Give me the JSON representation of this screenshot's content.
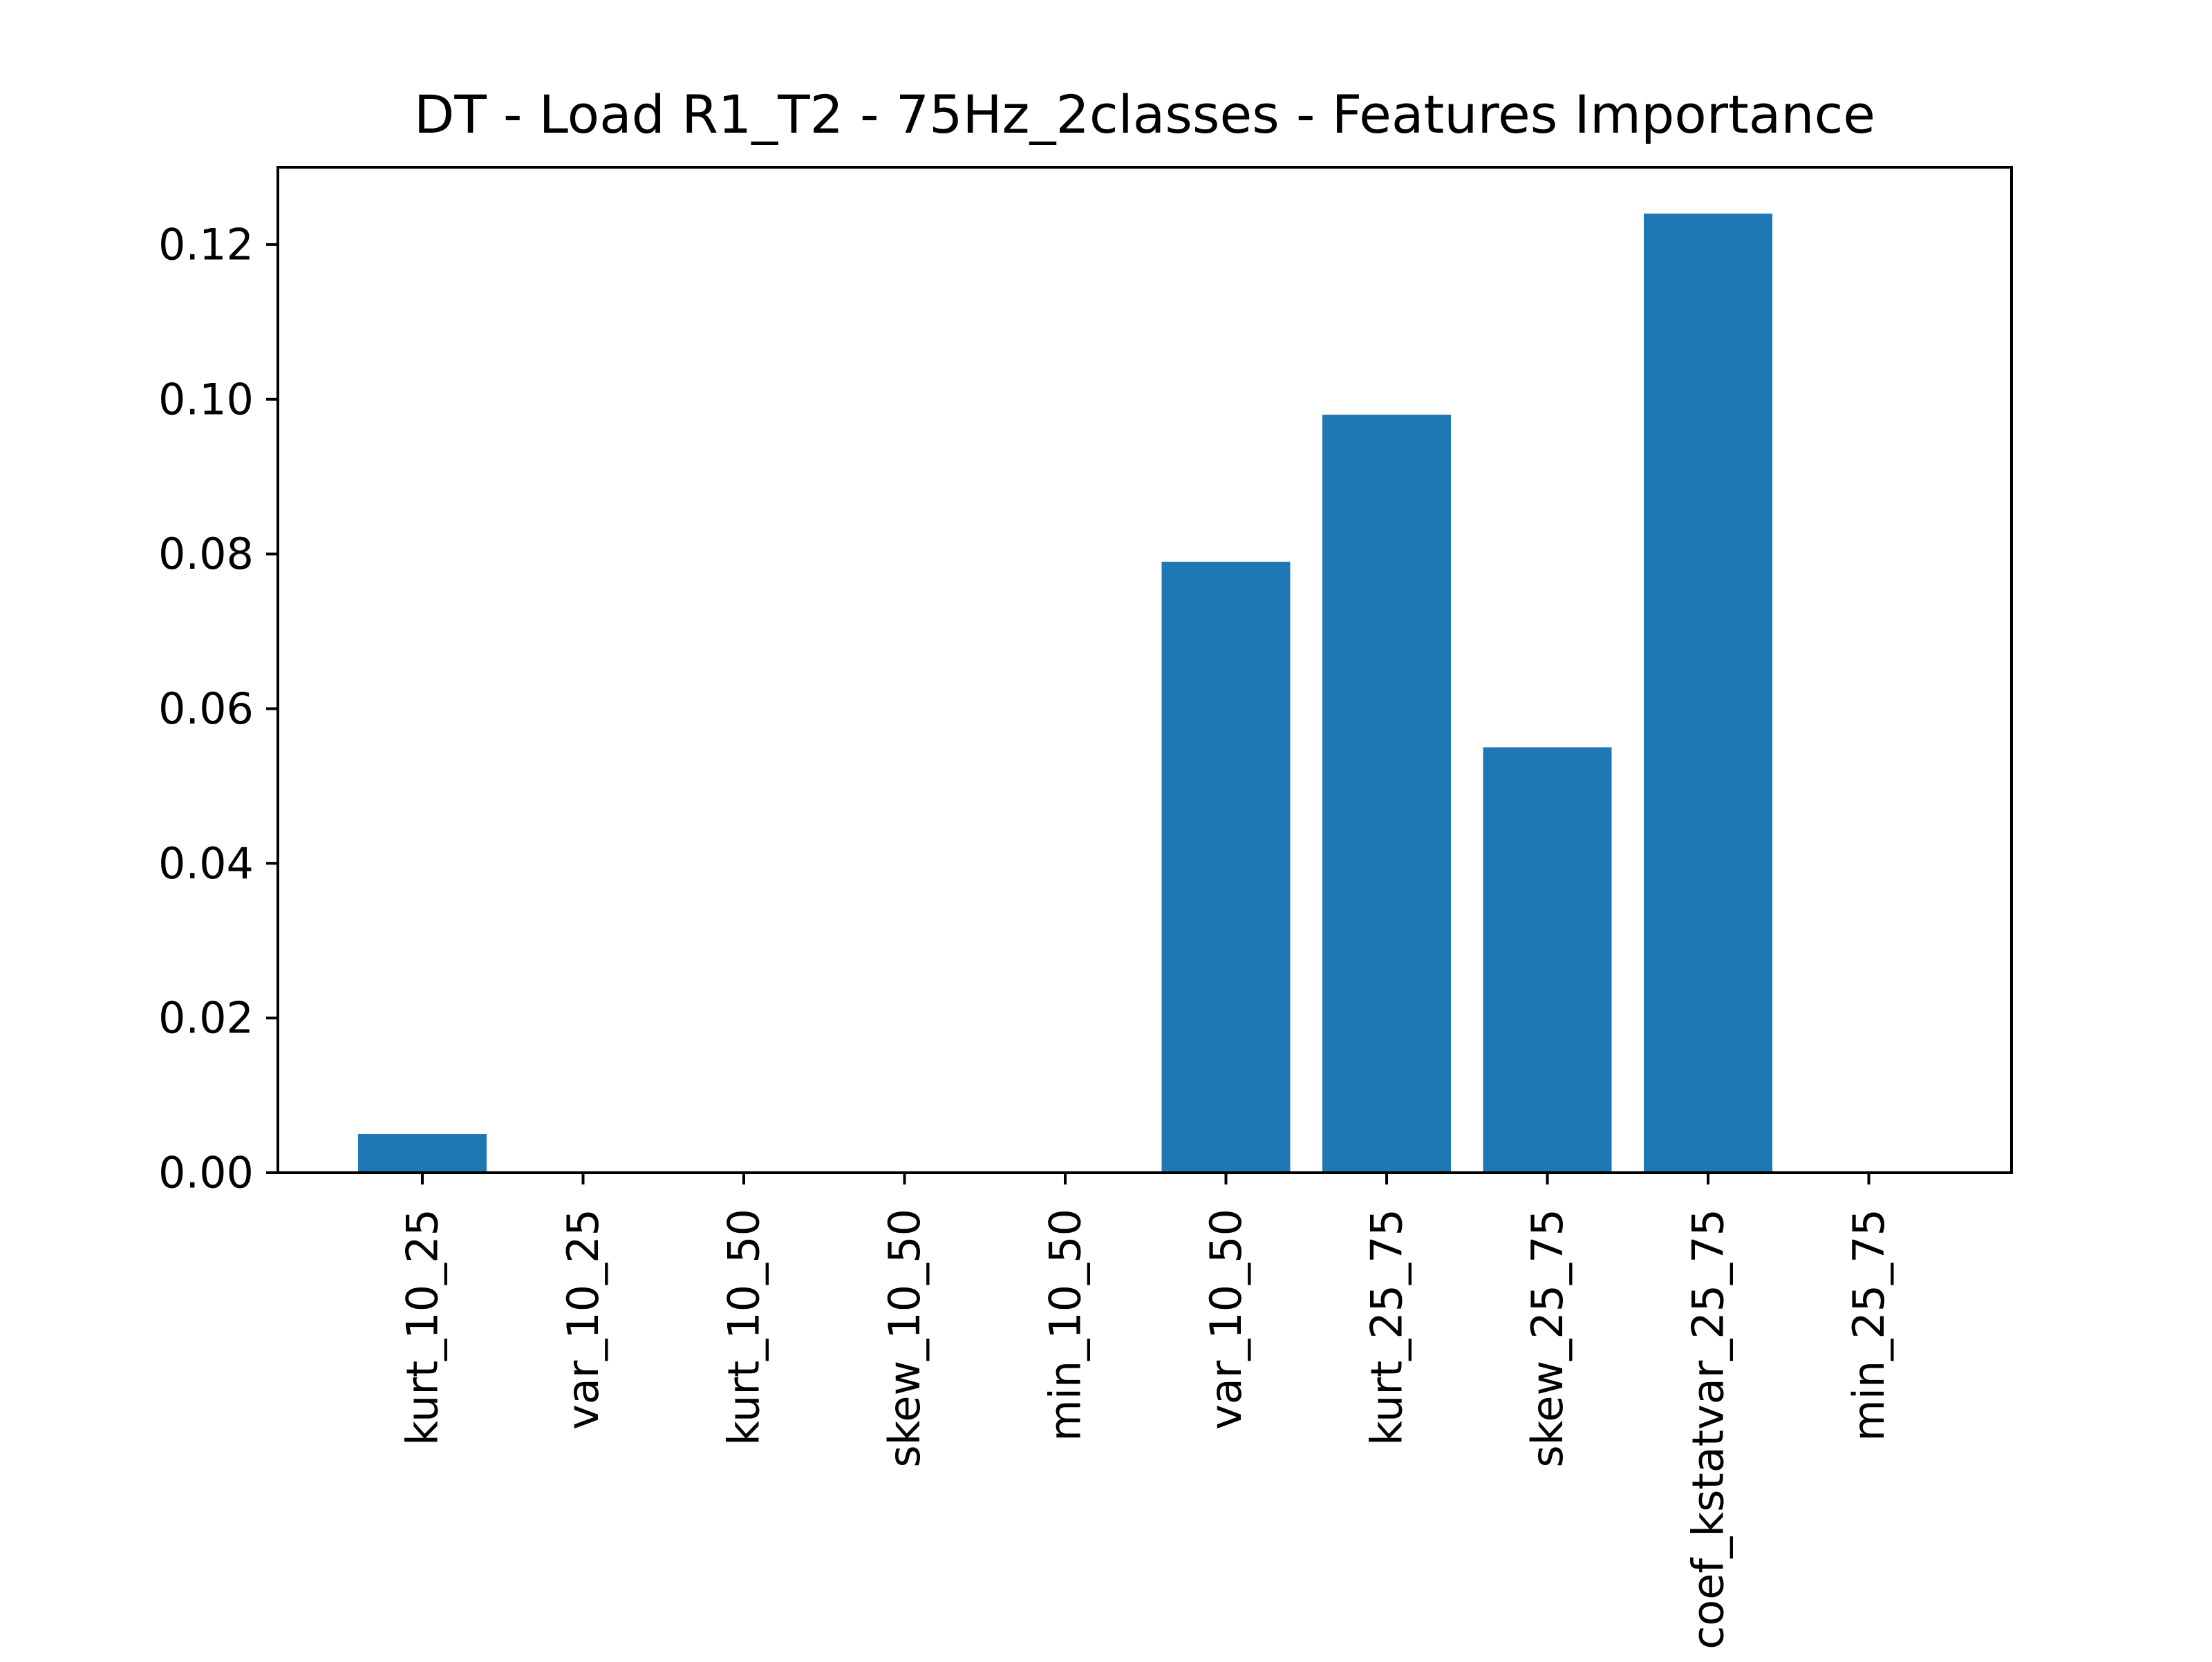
{
  "chart_data": {
    "type": "bar",
    "title": "DT - Load R1_T2 - 75Hz_2classes - Features Importance",
    "xlabel": "",
    "ylabel": "",
    "categories": [
      "kurt_10_25",
      "var_10_25",
      "kurt_10_50",
      "skew_10_50",
      "min_10_50",
      "var_10_50",
      "kurt_25_75",
      "skew_25_75",
      "coef_kstatvar_25_75",
      "min_25_75"
    ],
    "values": [
      0.005,
      0.0,
      0.0,
      0.0,
      0.0,
      0.079,
      0.098,
      0.055,
      0.124,
      0.0
    ],
    "ylim": [
      0,
      0.13
    ],
    "yticks": [
      0.0,
      0.02,
      0.04,
      0.06,
      0.08,
      0.1,
      0.12
    ],
    "ytick_labels": [
      "0.00",
      "0.02",
      "0.04",
      "0.06",
      "0.08",
      "0.10",
      "0.12"
    ],
    "grid": false,
    "bar_color": "#1f77b4"
  }
}
